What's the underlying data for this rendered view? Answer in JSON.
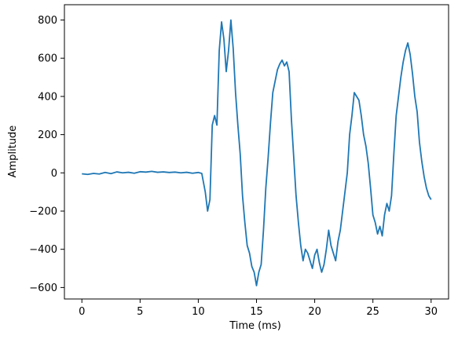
{
  "chart_data": {
    "type": "line",
    "title": "",
    "xlabel": "Time (ms)",
    "ylabel": "Amplitude",
    "xlim": [
      -1.5,
      31.5
    ],
    "ylim": [
      -660,
      880
    ],
    "xticks": [
      0,
      5,
      10,
      15,
      20,
      25,
      30
    ],
    "xtick_labels": [
      "0",
      "5",
      "10",
      "15",
      "20",
      "25",
      "30"
    ],
    "yticks": [
      -600,
      -400,
      -200,
      0,
      200,
      400,
      600,
      800
    ],
    "ytick_labels": [
      "−600",
      "−400",
      "−200",
      "0",
      "200",
      "400",
      "600",
      "800"
    ],
    "grid": false,
    "legend": "none",
    "series": [
      {
        "color": "#1f77b4",
        "x": [
          0,
          0.5,
          1,
          1.5,
          2,
          2.5,
          3,
          3.5,
          4,
          4.5,
          5,
          5.5,
          6,
          6.5,
          7,
          7.5,
          8,
          8.5,
          9,
          9.5,
          10,
          10.3,
          10.6,
          10.8,
          11,
          11.2,
          11.4,
          11.6,
          11.8,
          12,
          12.2,
          12.4,
          12.6,
          12.8,
          13,
          13.2,
          13.4,
          13.6,
          13.8,
          14,
          14.2,
          14.4,
          14.6,
          14.8,
          15,
          15.2,
          15.4,
          15.6,
          15.8,
          16,
          16.2,
          16.4,
          16.6,
          16.8,
          17,
          17.2,
          17.4,
          17.6,
          17.8,
          18,
          18.2,
          18.4,
          18.6,
          18.8,
          19,
          19.2,
          19.4,
          19.6,
          19.8,
          20,
          20.2,
          20.4,
          20.6,
          20.8,
          21,
          21.2,
          21.4,
          21.6,
          21.8,
          22,
          22.2,
          22.4,
          22.6,
          22.8,
          23,
          23.2,
          23.4,
          23.6,
          23.8,
          24,
          24.2,
          24.4,
          24.6,
          24.8,
          25,
          25.2,
          25.4,
          25.6,
          25.8,
          26,
          26.2,
          26.4,
          26.6,
          26.8,
          27,
          27.2,
          27.4,
          27.6,
          27.8,
          28,
          28.2,
          28.4,
          28.6,
          28.8,
          29,
          29.2,
          29.4,
          29.6,
          29.8,
          30
        ],
        "y": [
          -5,
          -8,
          -3,
          -6,
          2,
          -4,
          5,
          0,
          3,
          -2,
          6,
          4,
          8,
          3,
          5,
          2,
          4,
          0,
          3,
          -2,
          2,
          -3,
          -100,
          -200,
          -140,
          250,
          300,
          250,
          640,
          790,
          700,
          530,
          640,
          800,
          650,
          420,
          250,
          100,
          -120,
          -260,
          -380,
          -420,
          -490,
          -520,
          -590,
          -520,
          -480,
          -300,
          -80,
          80,
          260,
          420,
          480,
          540,
          570,
          590,
          560,
          580,
          530,
          280,
          80,
          -120,
          -260,
          -380,
          -460,
          -400,
          -420,
          -460,
          -500,
          -430,
          -400,
          -470,
          -520,
          -480,
          -400,
          -300,
          -380,
          -420,
          -460,
          -360,
          -300,
          -200,
          -100,
          0,
          200,
          300,
          420,
          400,
          380,
          300,
          200,
          140,
          50,
          -80,
          -220,
          -260,
          -320,
          -280,
          -330,
          -220,
          -160,
          -200,
          -120,
          100,
          300,
          400,
          500,
          580,
          640,
          680,
          620,
          520,
          400,
          320,
          160,
          60,
          -20,
          -80,
          -120,
          -140
        ]
      }
    ]
  }
}
